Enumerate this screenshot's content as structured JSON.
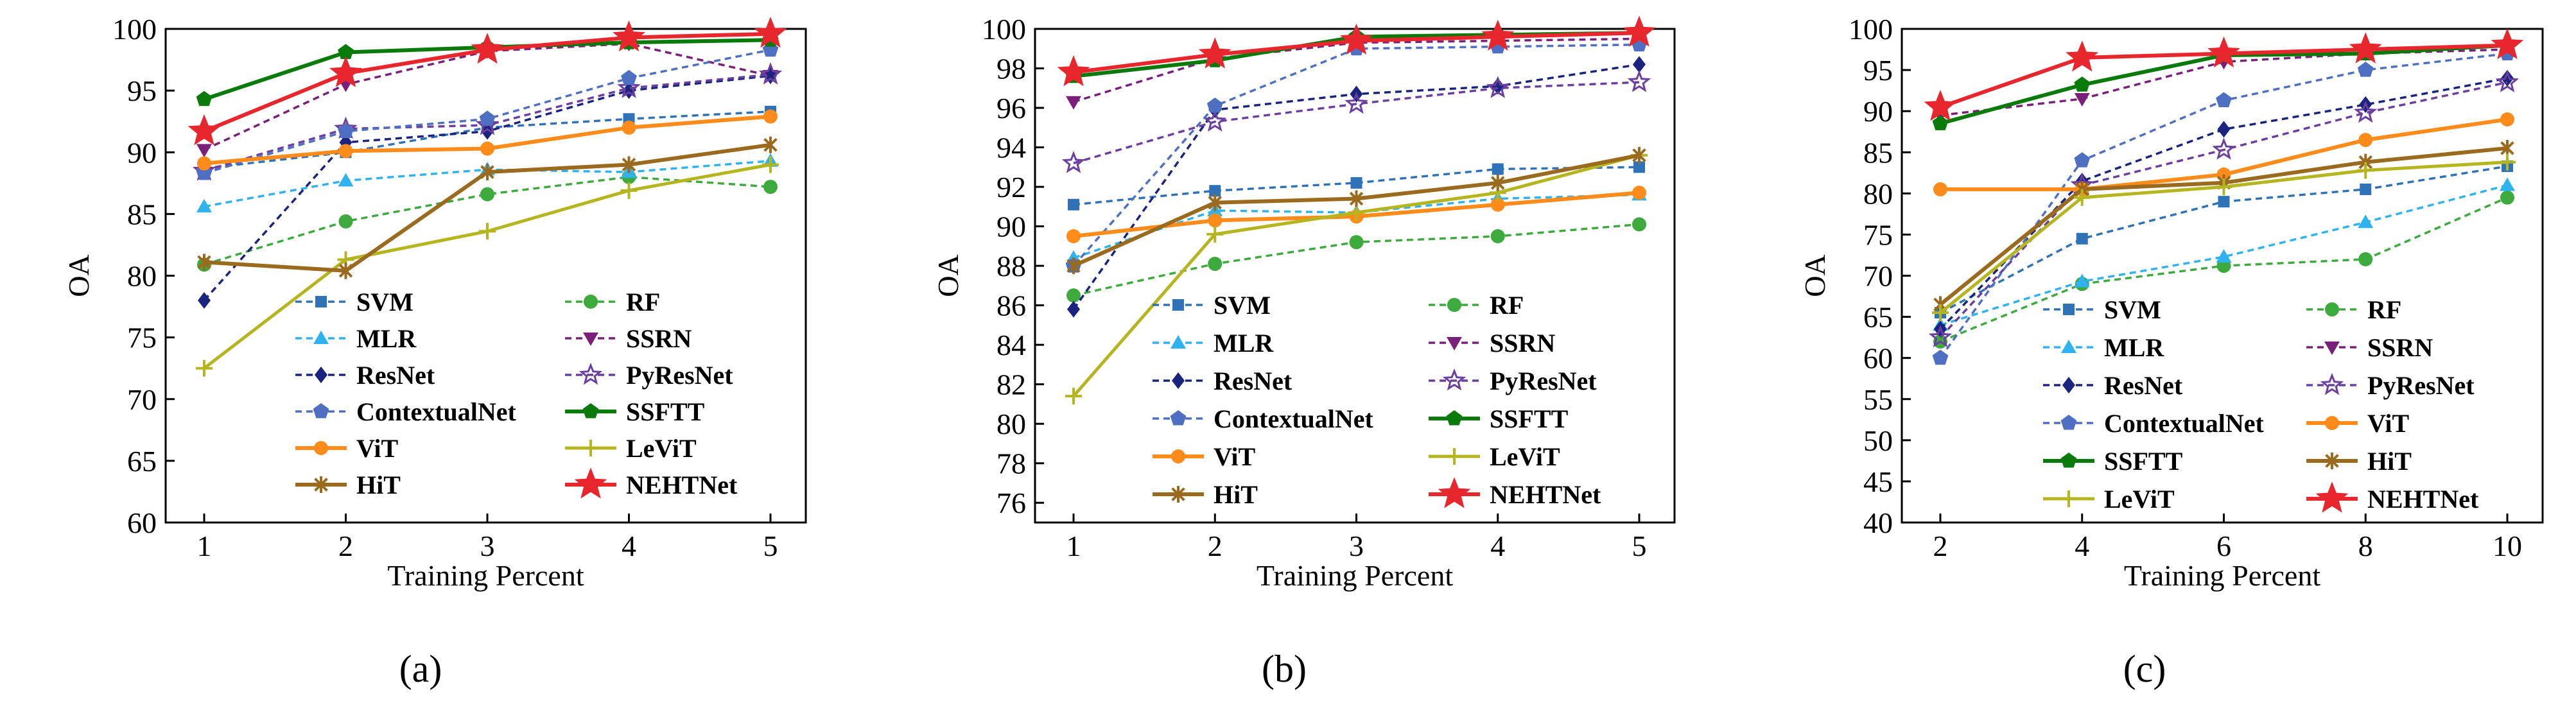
{
  "chart_data": [
    {
      "type": "line",
      "panel_label": "(a)",
      "xlabel": "Training Percent",
      "ylabel": "OA",
      "x": [
        1,
        2,
        3,
        4,
        5
      ],
      "xticks": [
        "1",
        "2",
        "3",
        "4",
        "5"
      ],
      "ylim": [
        60,
        100
      ],
      "yticks": [
        "60",
        "65",
        "70",
        "75",
        "80",
        "85",
        "90",
        "95",
        "100"
      ],
      "legend_columns": 2,
      "legend_order": [
        "SVM",
        "RF",
        "MLR",
        "SSRN",
        "ResNet",
        "PyResNet",
        "ContextualNet",
        "SSFTT",
        "ViT",
        "LeViT",
        "HiT",
        "NEHTNet"
      ],
      "series": [
        {
          "name": "SVM",
          "values": [
            88.7,
            90.0,
            92.0,
            92.7,
            93.3
          ]
        },
        {
          "name": "RF",
          "values": [
            80.9,
            84.4,
            86.6,
            88.0,
            87.2
          ]
        },
        {
          "name": "MLR",
          "values": [
            85.6,
            87.7,
            88.6,
            88.4,
            89.3
          ]
        },
        {
          "name": "SSRN",
          "values": [
            90.2,
            95.5,
            98.2,
            98.8,
            96.2
          ]
        },
        {
          "name": "ResNet",
          "values": [
            78.0,
            90.8,
            91.7,
            95.0,
            96.2
          ]
        },
        {
          "name": "PyResNet",
          "values": [
            88.5,
            91.9,
            92.2,
            95.2,
            96.3
          ]
        },
        {
          "name": "ContextualNet",
          "values": [
            88.3,
            91.7,
            92.7,
            96.0,
            98.3
          ]
        },
        {
          "name": "SSFTT",
          "values": [
            94.3,
            98.1,
            98.5,
            98.9,
            99.1
          ]
        },
        {
          "name": "ViT",
          "values": [
            89.1,
            90.1,
            90.3,
            92.0,
            92.9
          ]
        },
        {
          "name": "LeViT",
          "values": [
            72.5,
            81.3,
            83.6,
            86.9,
            89.0
          ]
        },
        {
          "name": "HiT",
          "values": [
            81.1,
            80.4,
            88.4,
            89.0,
            90.6
          ]
        },
        {
          "name": "NEHTNet",
          "values": [
            91.7,
            96.4,
            98.3,
            99.3,
            99.6
          ]
        }
      ]
    },
    {
      "type": "line",
      "panel_label": "(b)",
      "xlabel": "Training Percent",
      "ylabel": "OA",
      "x": [
        1,
        2,
        3,
        4,
        5
      ],
      "xticks": [
        "1",
        "2",
        "3",
        "4",
        "5"
      ],
      "ylim": [
        75,
        100
      ],
      "yticks": [
        "76",
        "78",
        "80",
        "82",
        "84",
        "86",
        "88",
        "90",
        "92",
        "94",
        "96",
        "98",
        "100"
      ],
      "legend_columns": 2,
      "legend_order": [
        "SVM",
        "RF",
        "MLR",
        "SSRN",
        "ResNet",
        "PyResNet",
        "ContextualNet",
        "SSFTT",
        "ViT",
        "LeViT",
        "HiT",
        "NEHTNet"
      ],
      "series": [
        {
          "name": "SVM",
          "values": [
            91.1,
            91.8,
            92.2,
            92.9,
            93.0
          ]
        },
        {
          "name": "RF",
          "values": [
            86.5,
            88.1,
            89.2,
            89.5,
            90.1
          ]
        },
        {
          "name": "MLR",
          "values": [
            88.4,
            90.8,
            90.7,
            91.4,
            91.6
          ]
        },
        {
          "name": "SSRN",
          "values": [
            96.3,
            98.5,
            99.3,
            99.4,
            99.5
          ]
        },
        {
          "name": "ResNet",
          "values": [
            85.8,
            95.9,
            96.7,
            97.1,
            98.2
          ]
        },
        {
          "name": "PyResNet",
          "values": [
            93.2,
            95.3,
            96.2,
            97.0,
            97.3
          ]
        },
        {
          "name": "ContextualNet",
          "values": [
            88.0,
            96.1,
            99.0,
            99.1,
            99.2
          ]
        },
        {
          "name": "SSFTT",
          "values": [
            97.6,
            98.4,
            99.6,
            99.7,
            99.8
          ]
        },
        {
          "name": "ViT",
          "values": [
            89.5,
            90.3,
            90.5,
            91.1,
            91.7
          ]
        },
        {
          "name": "LeViT",
          "values": [
            81.4,
            89.6,
            90.7,
            91.7,
            93.6
          ]
        },
        {
          "name": "HiT",
          "values": [
            88.0,
            91.2,
            91.4,
            92.2,
            93.6
          ]
        },
        {
          "name": "NEHTNet",
          "values": [
            97.8,
            98.7,
            99.4,
            99.6,
            99.8
          ]
        }
      ]
    },
    {
      "type": "line",
      "panel_label": "(c)",
      "xlabel": "Training Percent",
      "ylabel": "OA",
      "x": [
        2,
        4,
        6,
        8,
        10
      ],
      "xticks": [
        "2",
        "4",
        "6",
        "8",
        "10"
      ],
      "ylim": [
        40,
        100
      ],
      "yticks": [
        "40",
        "45",
        "50",
        "55",
        "60",
        "65",
        "70",
        "75",
        "80",
        "85",
        "90",
        "95",
        "100"
      ],
      "legend_columns": 2,
      "legend_order": [
        "SVM",
        "RF",
        "MLR",
        "SSRN",
        "ResNet",
        "PyResNet",
        "ContextualNet",
        "ViT",
        "SSFTT",
        "HiT",
        "LeViT",
        "NEHTNet"
      ],
      "series": [
        {
          "name": "SVM",
          "values": [
            65.5,
            74.5,
            79.0,
            80.5,
            83.3
          ]
        },
        {
          "name": "RF",
          "values": [
            62.0,
            69.0,
            71.2,
            72.0,
            79.5
          ]
        },
        {
          "name": "MLR",
          "values": [
            64.0,
            69.3,
            72.3,
            76.5,
            81.0
          ]
        },
        {
          "name": "SSRN",
          "values": [
            89.5,
            91.5,
            96.0,
            97.0,
            97.5
          ]
        },
        {
          "name": "ResNet",
          "values": [
            63.5,
            81.5,
            87.8,
            90.8,
            94.0
          ]
        },
        {
          "name": "PyResNet",
          "values": [
            62.5,
            81.0,
            85.3,
            89.8,
            93.5
          ]
        },
        {
          "name": "ContextualNet",
          "values": [
            60.0,
            84.0,
            91.3,
            95.0,
            97.0
          ]
        },
        {
          "name": "ViT",
          "values": [
            80.5,
            80.5,
            82.3,
            86.5,
            89.0
          ]
        },
        {
          "name": "SSFTT",
          "values": [
            88.5,
            93.2,
            96.8,
            97.0,
            98.0
          ]
        },
        {
          "name": "HiT",
          "values": [
            66.5,
            80.5,
            81.3,
            83.8,
            85.5
          ]
        },
        {
          "name": "LeViT",
          "values": [
            65.5,
            79.5,
            80.8,
            82.8,
            83.8
          ]
        },
        {
          "name": "NEHTNet",
          "values": [
            90.5,
            96.5,
            97.0,
            97.5,
            98.0
          ]
        }
      ]
    }
  ],
  "styles": {
    "SVM": {
      "color": "#2f72b8",
      "marker": "square",
      "dash": "dashed",
      "width": 3.5
    },
    "RF": {
      "color": "#3caa3c",
      "marker": "circle",
      "dash": "dashed",
      "width": 3.5
    },
    "MLR": {
      "color": "#2eb3f0",
      "marker": "triangle-up",
      "dash": "dashed",
      "width": 3.5
    },
    "SSRN": {
      "color": "#7a1f7a",
      "marker": "triangle-down",
      "dash": "dashed",
      "width": 3.5
    },
    "ResNet": {
      "color": "#1a237e",
      "marker": "diamond",
      "dash": "dashed",
      "width": 3.5
    },
    "PyResNet": {
      "color": "#6a3fa0",
      "marker": "star",
      "dash": "dashed",
      "width": 3.5
    },
    "ContextualNet": {
      "color": "#4f6fc2",
      "marker": "pentagon",
      "dash": "dashed",
      "width": 3.5
    },
    "SSFTT": {
      "color": "#0a7a0a",
      "marker": "pentagon",
      "dash": "solid",
      "width": 6
    },
    "ViT": {
      "color": "#ff8c1a",
      "marker": "circle",
      "dash": "solid",
      "width": 6
    },
    "LeViT": {
      "color": "#b5b520",
      "marker": "plus",
      "dash": "solid",
      "width": 5
    },
    "HiT": {
      "color": "#9a6a1e",
      "marker": "asterisk",
      "dash": "solid",
      "width": 6
    },
    "NEHTNet": {
      "color": "#e8262d",
      "marker": "star",
      "dash": "solid",
      "width": 6
    }
  }
}
